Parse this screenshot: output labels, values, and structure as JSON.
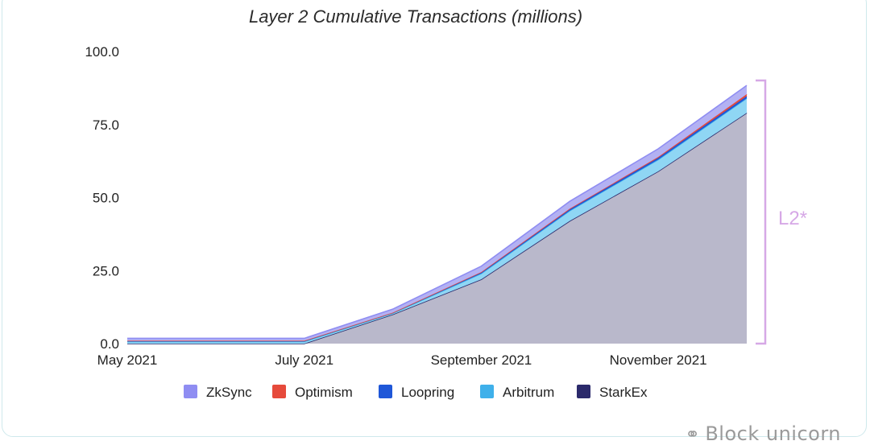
{
  "chart_data": {
    "type": "area",
    "title": "Layer 2 Cumulative Transactions (millions)",
    "x_ticks": [
      "May 2021",
      "July 2021",
      "September 2021",
      "November 2021"
    ],
    "y_ticks": [
      "100.0",
      "75.0",
      "50.0",
      "25.0",
      "0.0"
    ],
    "ylim": [
      0,
      100
    ],
    "x": [
      "2021-05",
      "2021-06",
      "2021-07",
      "2021-08",
      "2021-09",
      "2021-10",
      "2021-11",
      "2021-12"
    ],
    "stack_order_bottom_to_top": [
      "StarkEx",
      "Arbitrum",
      "Loopring",
      "Optimism",
      "ZkSync"
    ],
    "series": [
      {
        "name": "StarkEx",
        "color": "#2b2a6b",
        "values": [
          0.0,
          0.0,
          0.0,
          10.0,
          22.0,
          42.0,
          59.0,
          79.0
        ]
      },
      {
        "name": "Arbitrum",
        "color": "#3fb0ea",
        "values": [
          0.7,
          0.7,
          0.7,
          0.4,
          2.0,
          3.5,
          4.0,
          5.0
        ]
      },
      {
        "name": "Loopring",
        "color": "#1f57d8",
        "values": [
          0.3,
          0.3,
          0.3,
          0.2,
          0.4,
          0.5,
          0.6,
          0.7
        ]
      },
      {
        "name": "Optimism",
        "color": "#e64a3b",
        "values": [
          0.0,
          0.0,
          0.0,
          0.0,
          0.1,
          0.2,
          0.3,
          0.7
        ]
      },
      {
        "name": "ZkSync",
        "color": "#8f8df2",
        "values": [
          0.8,
          0.8,
          0.8,
          1.2,
          2.0,
          2.5,
          2.8,
          3.0
        ]
      }
    ],
    "legend": [
      "ZkSync",
      "Optimism",
      "Loopring",
      "Arbitrum",
      "StarkEx"
    ],
    "legend_position": "bottom",
    "bracket_label": "L2*",
    "grid": false
  },
  "watermark": {
    "icon": "wechat-icon",
    "text": "Block unicorn"
  }
}
